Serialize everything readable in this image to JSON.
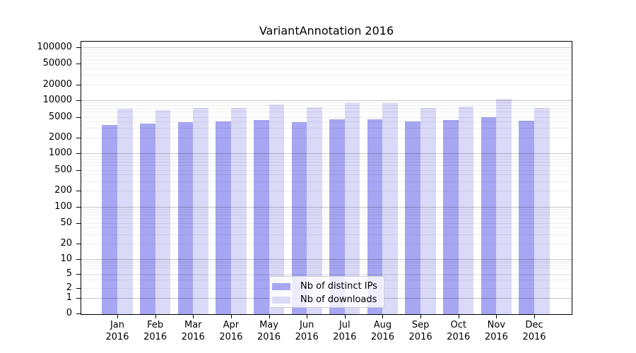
{
  "chart_data": {
    "type": "bar",
    "title": "VariantAnnotation 2016",
    "categories": [
      "Jan",
      "Feb",
      "Mar",
      "Apr",
      "May",
      "Jun",
      "Jul",
      "Aug",
      "Sep",
      "Oct",
      "Nov",
      "Dec"
    ],
    "x_year": "2016",
    "series": [
      {
        "name": "Nb of distinct IPs",
        "color": "#a6a6f2",
        "values": [
          3400,
          3600,
          3900,
          4000,
          4200,
          3900,
          4300,
          4400,
          4000,
          4200,
          4700,
          4100
        ]
      },
      {
        "name": "Nb of downloads",
        "color": "#dadaf8",
        "values": [
          6900,
          6400,
          7100,
          7100,
          8200,
          7400,
          8700,
          8800,
          7100,
          7500,
          10600,
          7000
        ]
      }
    ],
    "yticks": [
      100000,
      50000,
      20000,
      10000,
      5000,
      2000,
      1000,
      500,
      200,
      100,
      50,
      20,
      10,
      5,
      2,
      1,
      0
    ],
    "xlabel": "",
    "ylabel": "",
    "yscale": "log with zero baseline",
    "ylim": [
      0,
      130000
    ],
    "grid": "both (minor light, major darker, drawn over bars)",
    "legend_position": "lower center inside plot"
  },
  "colors": {
    "bar_distinct_ips": "#a6a6f2",
    "bar_downloads": "#dadaf8",
    "grid_minor": "rgba(0,0,0,0.07)",
    "grid_major": "rgba(0,0,0,0.22)",
    "axis": "#000000",
    "legend_border": "#cccccc",
    "background": "#ffffff"
  }
}
